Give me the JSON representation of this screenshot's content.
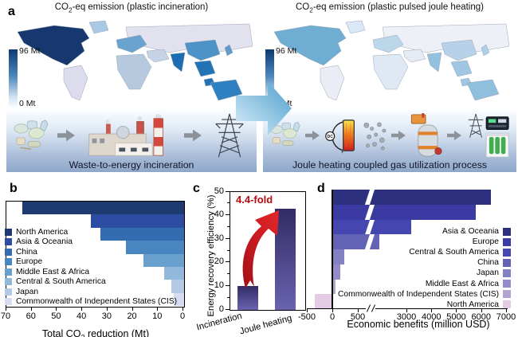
{
  "panel_a": {
    "label": "a",
    "left": {
      "title_pre": "CO",
      "title_sub": "2",
      "title_post": "-eq emission (plastic incineration)",
      "colorbar_max": "96 Mt",
      "colorbar_min": "0 Mt",
      "caption": "Waste-to-energy incineration",
      "icons": [
        "plastic-waste",
        "arrow-right",
        "incineration-plant",
        "arrow-right",
        "power-grid-tower"
      ],
      "map_colors": {
        "north_america": "#16386e",
        "greenland": "#a9c9e3",
        "south_america": "#dcdcec",
        "europe": "#6ba3cf",
        "russia": "#e2e2ef",
        "africa": "#b7c9df",
        "middle_east": "#c6d2e5",
        "india": "#1d6db2",
        "china": "#4d93c8",
        "se_asia": "#2173b5",
        "australia": "#2e80c1",
        "japan": "#5f9cca"
      }
    },
    "right": {
      "title_pre": "CO",
      "title_sub": "2",
      "title_post": "-eq emission (plastic pulsed joule heating)",
      "colorbar_max": "96 Mt",
      "colorbar_min": "0 Mt",
      "caption": "Joule heating coupled gas utilization process",
      "icons": [
        "plastic-waste",
        "arrow-right",
        "dc-joule-heater",
        "gas-molecules",
        "arrow-right",
        "gas-reactor",
        "arrow-right",
        "grid-and-battery-storage"
      ],
      "map_colors": {
        "north_america": "#6fadd3",
        "greenland": "#d9e8f4",
        "south_america": "#eaecf6",
        "europe": "#bcd6ea",
        "russia": "#eef0f8",
        "africa": "#dfe9f3",
        "middle_east": "#e4ebf4",
        "india": "#93c2e0",
        "china": "#b7d2e8",
        "se_asia": "#a0c7e2",
        "australia": "#90bfde",
        "japan": "#aed0e6"
      }
    },
    "transition_arrow_colors": [
      "#d9edf8",
      "#4f9fcd"
    ]
  },
  "panel_b": {
    "label": "b"
  },
  "panel_c": {
    "label": "c"
  },
  "panel_d": {
    "label": "d"
  },
  "chart_data": [
    {
      "id": "b",
      "type": "bar",
      "orientation": "horizontal",
      "bar_alignment": "right",
      "categories": [
        "North America",
        "Asia & Oceania",
        "China",
        "Europe",
        "Middle East & Africa",
        "Central & South America",
        "Japan",
        "Commonwealth of Independent States (CIS)"
      ],
      "values": [
        64,
        37,
        33,
        23,
        16,
        8,
        5,
        4
      ],
      "colors": [
        "#1e3a70",
        "#2c4da3",
        "#336cb1",
        "#4886c1",
        "#69a0cd",
        "#92b8db",
        "#b4c9e6",
        "#d6ddf0"
      ],
      "xlabel_pre": "Total CO",
      "xlabel_sub": "2",
      "xlabel_post": " reduction (Mt)",
      "xticks": [
        70,
        60,
        50,
        40,
        30,
        20,
        10,
        0
      ],
      "xlim": [
        70,
        0
      ],
      "axis_reversed": true,
      "grid": false,
      "legend_position": "lower left"
    },
    {
      "id": "c",
      "type": "bar",
      "orientation": "vertical",
      "categories": [
        "Incineration",
        "Joule heating"
      ],
      "values": [
        10,
        43
      ],
      "ylabel": "Energy recovery efficiency (%)",
      "yticks": [
        0,
        10,
        20,
        30,
        40,
        50
      ],
      "ylim": [
        0,
        50
      ],
      "grid": false,
      "annotation": "4.4-fold",
      "annotation_color": "#b50d12",
      "arrow_colors": [
        "#e2262b",
        "#8c0b10"
      ],
      "bar_gradient_top": "#312c64",
      "bar_gradient_bottom": "#6a63b0"
    },
    {
      "id": "d",
      "type": "bar",
      "orientation": "horizontal",
      "bar_alignment": "left",
      "categories": [
        "Asia & Oceania",
        "Europe",
        "Central & South America",
        "China",
        "Japan",
        "Middle East & Africa",
        "Commonwealth of Independent States (CIS)",
        "North America"
      ],
      "values": [
        6400,
        5800,
        3200,
        1900,
        230,
        150,
        60,
        -350
      ],
      "colors": [
        "#2d2f7f",
        "#3a3aa2",
        "#4646b0",
        "#6363b5",
        "#8181c3",
        "#968bc9",
        "#b2a3d3",
        "#e3cbe3"
      ],
      "xlabel": "Economic benefits (million USD)",
      "xticks_left": [
        -500,
        0,
        500
      ],
      "xticks_right": [
        3000,
        4000,
        5000,
        6000,
        7000
      ],
      "axis_break_between": [
        750,
        1625
      ],
      "xlim": [
        -500,
        7000
      ],
      "grid": false,
      "legend_position": "right"
    }
  ]
}
